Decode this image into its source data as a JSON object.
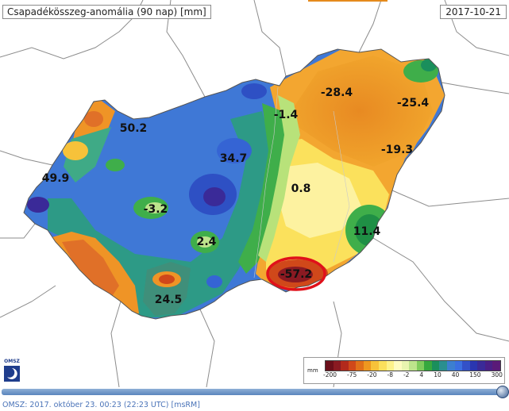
{
  "header": {
    "title": "Csapadékösszeg-anomália (90 nap) [mm]",
    "date": "2017-10-21"
  },
  "map": {
    "values": [
      {
        "id": "v-50-2",
        "text": "50.2"
      },
      {
        "id": "v-49-9",
        "text": "49.9"
      },
      {
        "id": "v-34-7",
        "text": "34.7"
      },
      {
        "id": "v-m3-2",
        "text": "-3.2"
      },
      {
        "id": "v-2-4",
        "text": "2.4"
      },
      {
        "id": "v-24-5",
        "text": "24.5"
      },
      {
        "id": "v-m1-4",
        "text": "-1.4"
      },
      {
        "id": "v-m28-4",
        "text": "-28.4"
      },
      {
        "id": "v-m25-4",
        "text": "-25.4"
      },
      {
        "id": "v-m19-3",
        "text": "-19.3"
      },
      {
        "id": "v-0-8",
        "text": "0.8"
      },
      {
        "id": "v-11-4",
        "text": "11.4"
      },
      {
        "id": "v-m57-2",
        "text": "-57.2"
      }
    ],
    "highlighted_value": "-57.2",
    "highlight_color": "#e0101a"
  },
  "legend": {
    "unit": "mm",
    "colors": [
      "#6b0f1a",
      "#8a1a22",
      "#b22a1c",
      "#d0481a",
      "#e0701a",
      "#ee9820",
      "#f7c23a",
      "#fbe05c",
      "#fdf28a",
      "#fefcc0",
      "#e9f5b0",
      "#bde48c",
      "#7fcb5c",
      "#36a83e",
      "#1a8f5c",
      "#2a8f8f",
      "#3c7fd0",
      "#3b6fe0",
      "#3351c8",
      "#2a36b0",
      "#3a2a98",
      "#4a1f86",
      "#5a1a78"
    ],
    "ticks": [
      "-200",
      "-75",
      "-20",
      "-8",
      "-2",
      "4",
      "10",
      "40",
      "150",
      "300"
    ]
  },
  "logo": {
    "text": "OMSZ"
  },
  "footer": {
    "text": "OMSZ: 2017. október 23. 00:23 (22:23  UTC)  [msRM]"
  }
}
